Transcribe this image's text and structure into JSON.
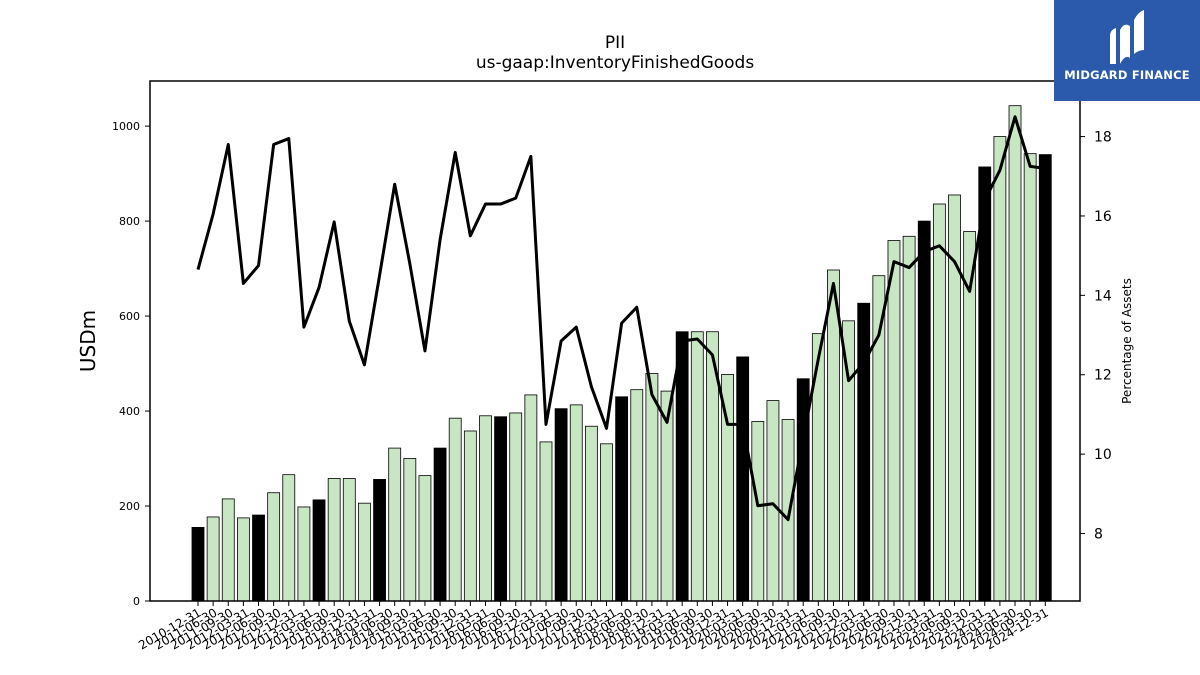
{
  "logo": {
    "text": "MIDGARD FINANCE",
    "icon": "midgard-m-icon",
    "bg_color": "#2b5aad"
  },
  "chart_data": {
    "type": "bar",
    "title": "PII",
    "subtitle": "us-gaap:InventoryFinishedGoods",
    "ylabel": "USDm",
    "ylabel_right": "Percentage of Assets",
    "ylim": [
      0,
      1095
    ],
    "yticks": [
      0,
      200,
      400,
      600,
      800,
      1000
    ],
    "ylim_right": [
      6.3,
      19.4
    ],
    "yticks_right": [
      8,
      10,
      12,
      14,
      16,
      18
    ],
    "bar_color_quarter": "#c8e6c3",
    "bar_color_year_end": "#000000",
    "line_color": "#000000",
    "grid": false,
    "categories": [
      "2010-12-31",
      "2011-03-31",
      "2011-06-30",
      "2011-09-30",
      "2011-12-31",
      "2012-03-31",
      "2012-06-30",
      "2012-09-30",
      "2012-12-31",
      "2013-03-31",
      "2013-06-30",
      "2013-09-30",
      "2013-12-31",
      "2014-03-31",
      "2014-06-30",
      "2014-09-30",
      "2014-12-31",
      "2015-03-31",
      "2015-06-30",
      "2015-09-30",
      "2015-12-31",
      "2016-03-31",
      "2016-06-30",
      "2016-09-30",
      "2016-12-31",
      "2017-03-31",
      "2017-06-30",
      "2017-09-30",
      "2017-12-31",
      "2018-03-31",
      "2018-06-30",
      "2018-09-30",
      "2018-12-31",
      "2019-03-31",
      "2019-06-30",
      "2019-09-30",
      "2019-12-31",
      "2020-03-31",
      "2020-06-30",
      "2020-09-30",
      "2020-12-31",
      "2021-03-31",
      "2021-06-30",
      "2021-09-30",
      "2021-12-31",
      "2022-03-31",
      "2022-06-30",
      "2022-09-30",
      "2022-12-31",
      "2023-03-31",
      "2023-06-30",
      "2023-09-30",
      "2023-12-31",
      "2024-03-31",
      "2024-06-30",
      "2024-09-30",
      "2024-12-31"
    ],
    "xtick_labels": [
      "2010-12-31",
      "2011-06-30",
      "2011-09-30",
      "2012-03-31",
      "2012-06-30",
      "2012-09-30",
      "2012-12-31",
      "2013-03-31",
      "2013-06-30",
      "2013-09-30",
      "2013-12-31",
      "2014-03-31",
      "2014-06-30",
      "2014-09-30",
      "2015-03-31",
      "2015-06-30",
      "2015-09-30",
      "2015-12-31",
      "2016-03-31",
      "2016-06-30",
      "2016-09-30",
      "2016-12-31",
      "2017-03-31",
      "2017-06-30",
      "2017-09-30",
      "2017-12-31",
      "2018-03-31",
      "2018-06-30",
      "2018-09-30",
      "2018-12-31",
      "2019-03-31",
      "2019-06-30",
      "2019-09-30",
      "2019-12-31",
      "2020-03-31",
      "2020-06-30",
      "2020-09-30",
      "2020-12-31",
      "2021-03-31",
      "2021-06-30",
      "2021-09-30",
      "2021-12-31",
      "2022-03-31",
      "2022-06-30",
      "2022-09-30",
      "2022-12-31",
      "2023-03-31",
      "2023-06-30",
      "2023-09-30",
      "2023-12-31",
      "2024-03-31",
      "2024-06-30",
      "2024-09-30",
      "2024-12-31"
    ],
    "series": [
      {
        "axis": "left",
        "kind": "bar",
        "values": [
          155,
          177,
          215,
          175,
          181,
          228,
          266,
          198,
          213,
          258,
          258,
          206,
          256,
          322,
          300,
          264,
          322,
          385,
          358,
          390,
          388,
          396,
          434,
          335,
          405,
          413,
          368,
          331,
          430,
          445,
          479,
          442,
          567,
          567,
          567,
          477,
          514,
          378,
          422,
          382,
          468,
          563,
          697,
          590,
          627,
          685,
          759,
          768,
          800,
          836,
          855,
          778,
          914,
          978,
          1043,
          942,
          940
        ]
      },
      {
        "axis": "right",
        "kind": "line",
        "values": [
          14.65,
          16.05,
          17.8,
          14.3,
          14.75,
          17.8,
          17.95,
          13.2,
          14.2,
          15.85,
          13.35,
          12.25,
          14.5,
          16.8,
          14.8,
          12.6,
          15.4,
          17.6,
          15.5,
          16.3,
          16.3,
          16.45,
          17.5,
          10.75,
          12.85,
          13.2,
          11.7,
          10.65,
          13.3,
          13.7,
          11.5,
          10.8,
          12.85,
          12.9,
          12.5,
          10.75,
          10.75,
          8.7,
          8.75,
          8.35,
          10.4,
          12.4,
          14.3,
          11.85,
          12.3,
          13.0,
          14.85,
          14.7,
          15.1,
          15.25,
          14.85,
          14.1,
          16.4,
          17.15,
          18.5,
          17.25,
          17.2
        ]
      }
    ]
  }
}
